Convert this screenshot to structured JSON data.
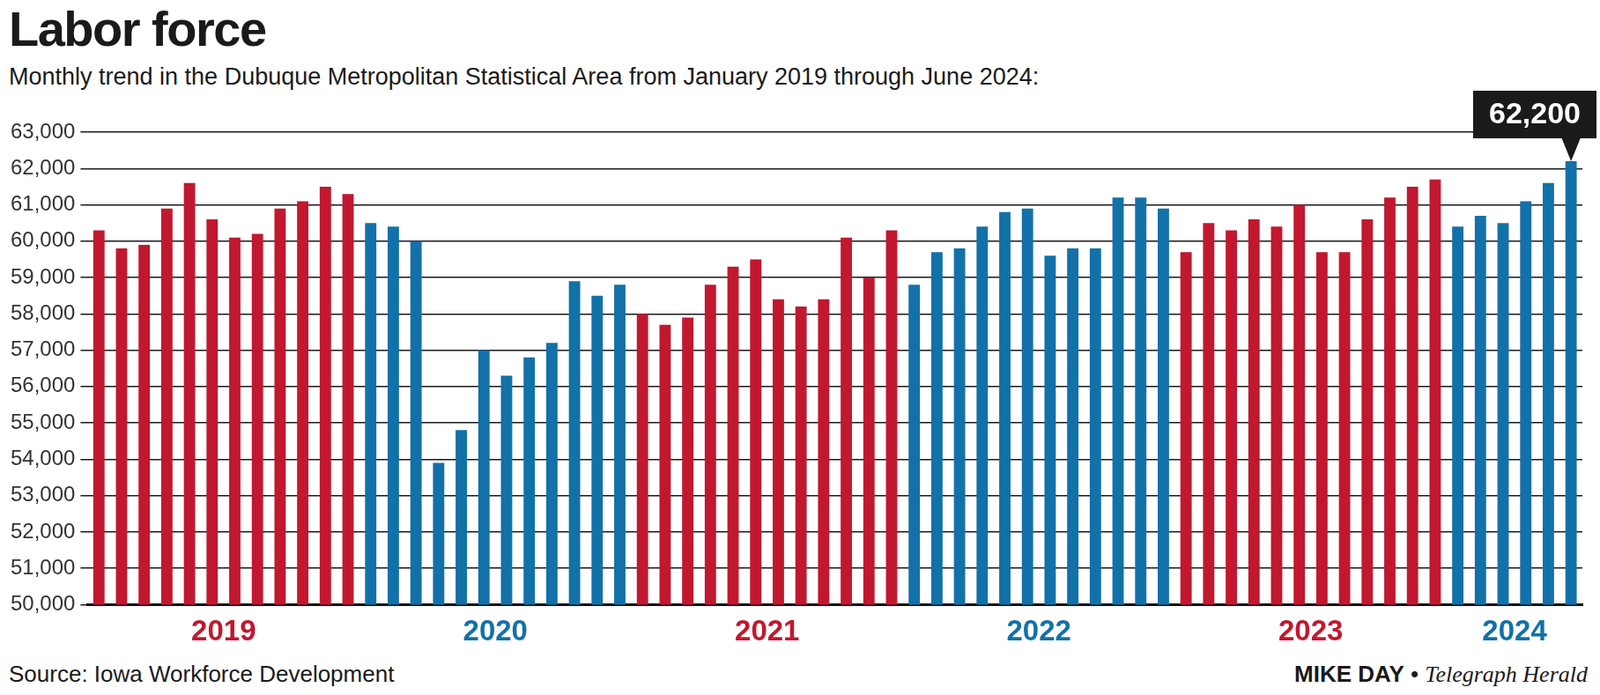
{
  "chart_data": {
    "type": "bar",
    "title": "Labor force",
    "subtitle": "Monthly trend in the Dubuque Metropolitan Statistical Area from January 2019 through June 2024:",
    "categories": [
      null,
      null,
      null,
      null,
      null,
      "2019",
      null,
      null,
      null,
      null,
      null,
      null,
      null,
      null,
      null,
      null,
      null,
      "2020",
      null,
      null,
      null,
      null,
      null,
      null,
      null,
      null,
      null,
      null,
      null,
      "2021",
      null,
      null,
      null,
      null,
      null,
      null,
      null,
      null,
      null,
      null,
      null,
      "2022",
      null,
      null,
      null,
      null,
      null,
      null,
      null,
      null,
      null,
      null,
      null,
      "2023",
      null,
      null,
      null,
      null,
      null,
      null,
      null,
      null,
      "2024",
      null,
      null,
      null
    ],
    "values": [
      60300,
      59800,
      59900,
      60900,
      61600,
      60600,
      60100,
      60200,
      60900,
      61100,
      61500,
      61300,
      60500,
      60400,
      60000,
      53900,
      54800,
      57000,
      56300,
      56800,
      57200,
      58900,
      58500,
      58800,
      58000,
      57700,
      57900,
      58800,
      59300,
      59500,
      58400,
      58200,
      58400,
      60100,
      59000,
      60300,
      58800,
      59700,
      59800,
      60400,
      60800,
      60900,
      59600,
      59800,
      59800,
      61200,
      61200,
      60900,
      59700,
      60500,
      60300,
      60600,
      60400,
      61000,
      59700,
      59700,
      60600,
      61200,
      61500,
      61700,
      60400,
      60700,
      60500,
      61100,
      61600,
      62200
    ],
    "colors": [
      "#c1182f",
      "#c1182f",
      "#c1182f",
      "#c1182f",
      "#c1182f",
      "#c1182f",
      "#c1182f",
      "#c1182f",
      "#c1182f",
      "#c1182f",
      "#c1182f",
      "#c1182f",
      "#1271a8",
      "#1271a8",
      "#1271a8",
      "#1271a8",
      "#1271a8",
      "#1271a8",
      "#1271a8",
      "#1271a8",
      "#1271a8",
      "#1271a8",
      "#1271a8",
      "#1271a8",
      "#c1182f",
      "#c1182f",
      "#c1182f",
      "#c1182f",
      "#c1182f",
      "#c1182f",
      "#c1182f",
      "#c1182f",
      "#c1182f",
      "#c1182f",
      "#c1182f",
      "#c1182f",
      "#1271a8",
      "#1271a8",
      "#1271a8",
      "#1271a8",
      "#1271a8",
      "#1271a8",
      "#1271a8",
      "#1271a8",
      "#1271a8",
      "#1271a8",
      "#1271a8",
      "#1271a8",
      "#c1182f",
      "#c1182f",
      "#c1182f",
      "#c1182f",
      "#c1182f",
      "#c1182f",
      "#c1182f",
      "#c1182f",
      "#c1182f",
      "#c1182f",
      "#c1182f",
      "#c1182f",
      "#1271a8",
      "#1271a8",
      "#1271a8",
      "#1271a8",
      "#1271a8",
      "#1271a8"
    ],
    "ylim": [
      50000,
      63000
    ],
    "yticks": [
      {
        "value": 50000,
        "label": "50,000"
      },
      {
        "value": 51000,
        "label": "51,000"
      },
      {
        "value": 52000,
        "label": "52,000"
      },
      {
        "value": 53000,
        "label": "53,000"
      },
      {
        "value": 54000,
        "label": "54,000"
      },
      {
        "value": 55000,
        "label": "55,000"
      },
      {
        "value": 56000,
        "label": "56,000"
      },
      {
        "value": 57000,
        "label": "57,000"
      },
      {
        "value": 58000,
        "label": "58,000"
      },
      {
        "value": 59000,
        "label": "59,000"
      },
      {
        "value": 60000,
        "label": "60,000"
      },
      {
        "value": 61000,
        "label": "61,000"
      },
      {
        "value": 62000,
        "label": "62,000"
      },
      {
        "value": 63000,
        "label": "63,000"
      }
    ],
    "grid": true,
    "annotation": {
      "text": "62,200",
      "category_index": 65,
      "value": 62200
    },
    "source": "Source: Iowa Workforce Development",
    "credit": {
      "author": "MIKE DAY",
      "separator": "•",
      "publication": "Telegraph Herald"
    }
  }
}
